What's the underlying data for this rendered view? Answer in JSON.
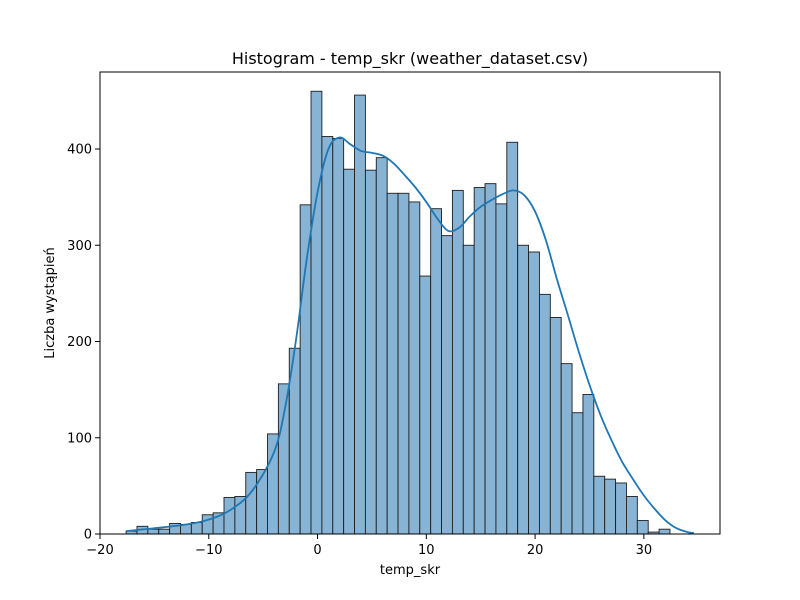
{
  "chart_data": {
    "type": "bar",
    "title": "Histogram - temp_skr (weather_dataset.csv)",
    "xlabel": "temp_skr",
    "ylabel": "Liczba wystąpień",
    "xlim": [
      -20,
      37
    ],
    "ylim": [
      0,
      480
    ],
    "xticks": [
      -20,
      -10,
      0,
      10,
      20,
      30
    ],
    "yticks": [
      0,
      100,
      200,
      300,
      400
    ],
    "grid": false,
    "colors": {
      "bar_fill": "#87b3d4",
      "bar_edge": "#1f1f1f",
      "kde": "#1f77b4"
    },
    "bins": {
      "start": -17.6,
      "width": 1.0,
      "counts": [
        3,
        8,
        5,
        5,
        11,
        10,
        12,
        20,
        22,
        38,
        39,
        64,
        67,
        104,
        156,
        193,
        342,
        460,
        413,
        411,
        379,
        456,
        378,
        391,
        354,
        354,
        345,
        268,
        338,
        310,
        357,
        300,
        360,
        364,
        343,
        407,
        300,
        293,
        249,
        225,
        177,
        126,
        145,
        60,
        57,
        53,
        39,
        14,
        2,
        5
      ]
    },
    "kde": {
      "x": [
        -17.6,
        -15,
        -12,
        -10,
        -8,
        -6,
        -4,
        -3,
        -2,
        -1,
        0,
        1,
        2,
        3,
        4,
        5,
        6,
        7,
        8,
        9,
        10,
        11,
        12,
        13,
        14,
        15,
        16,
        17,
        18,
        19,
        20,
        21,
        22,
        23,
        24,
        25,
        26,
        27,
        28,
        29,
        30,
        31,
        32,
        33,
        34,
        34.6
      ],
      "y": [
        3,
        6,
        10,
        15,
        25,
        45,
        85,
        130,
        200,
        285,
        355,
        400,
        412,
        405,
        398,
        396,
        393,
        385,
        373,
        360,
        345,
        328,
        315,
        318,
        330,
        340,
        347,
        353,
        357,
        352,
        335,
        305,
        265,
        228,
        190,
        155,
        124,
        98,
        75,
        57,
        40,
        26,
        14,
        6,
        2,
        1
      ]
    }
  }
}
